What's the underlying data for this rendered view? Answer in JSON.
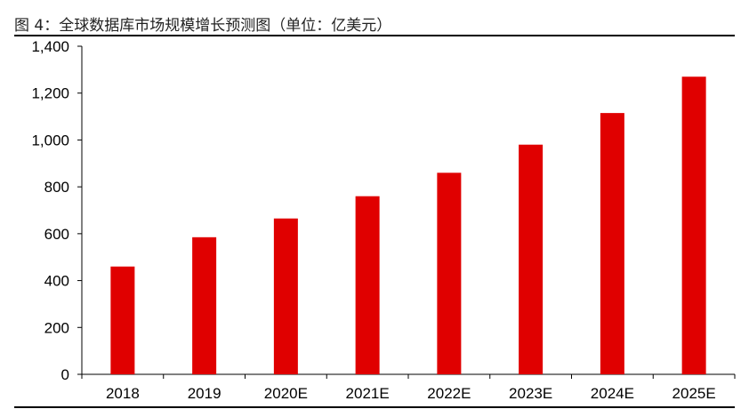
{
  "figure": {
    "title": "图 4：全球数据库市场规模增长预测图（单位：亿美元）"
  },
  "colors": {
    "bar": "#e00000",
    "axis": "#000000"
  },
  "chart_data": {
    "type": "bar",
    "title": "图 4：全球数据库市场规模增长预测图（单位：亿美元）",
    "xlabel": "",
    "ylabel": "",
    "categories": [
      "2018",
      "2019",
      "2020E",
      "2021E",
      "2022E",
      "2023E",
      "2024E",
      "2025E"
    ],
    "values": [
      460,
      585,
      665,
      760,
      860,
      980,
      1115,
      1270
    ],
    "ylim": [
      0,
      1400
    ],
    "yticks": [
      0,
      200,
      400,
      600,
      800,
      1000,
      1200,
      1400
    ],
    "ytick_labels": [
      "0",
      "200",
      "400",
      "600",
      "800",
      "1,000",
      "1,200",
      "1,400"
    ],
    "grid": false,
    "legend": "none"
  }
}
